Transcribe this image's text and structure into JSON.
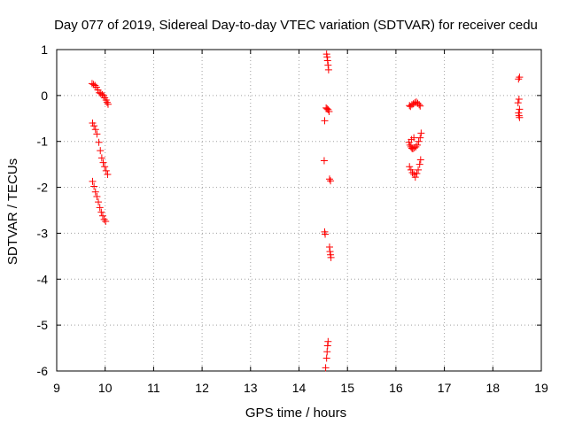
{
  "chart_data": {
    "type": "scatter",
    "title": "Day 077 of 2019, Sidereal Day-to-day VTEC variation (SDTVAR) for receiver cedu",
    "xlabel": "GPS time / hours",
    "ylabel": "SDTVAR / TECUs",
    "xlim": [
      9,
      19
    ],
    "ylim": [
      -6,
      1
    ],
    "xticks": [
      "9",
      "10",
      "11",
      "12",
      "13",
      "14",
      "15",
      "16",
      "17",
      "18",
      "19"
    ],
    "yticks": [
      "1",
      "0",
      "-1",
      "-2",
      "-3",
      "-4",
      "-5",
      "-6"
    ],
    "grid": true,
    "marker": "+",
    "color": "#ff0000",
    "series": [
      {
        "name": "SDTVAR",
        "points": [
          [
            9.73,
            0.26
          ],
          [
            9.76,
            0.24
          ],
          [
            9.79,
            0.22
          ],
          [
            9.82,
            0.18
          ],
          [
            9.85,
            0.12
          ],
          [
            9.88,
            0.06
          ],
          [
            9.91,
            0.04
          ],
          [
            9.94,
            0.02
          ],
          [
            9.97,
            0.0
          ],
          [
            9.99,
            -0.05
          ],
          [
            10.02,
            -0.1
          ],
          [
            10.04,
            -0.15
          ],
          [
            10.06,
            -0.19
          ],
          [
            9.74,
            -0.6
          ],
          [
            9.77,
            -0.66
          ],
          [
            9.8,
            -0.74
          ],
          [
            9.83,
            -0.84
          ],
          [
            9.87,
            -1.02
          ],
          [
            9.9,
            -1.2
          ],
          [
            9.93,
            -1.36
          ],
          [
            9.96,
            -1.46
          ],
          [
            9.99,
            -1.55
          ],
          [
            10.02,
            -1.64
          ],
          [
            10.05,
            -1.72
          ],
          [
            9.74,
            -1.87
          ],
          [
            9.77,
            -1.98
          ],
          [
            9.8,
            -2.1
          ],
          [
            9.83,
            -2.2
          ],
          [
            9.86,
            -2.32
          ],
          [
            9.89,
            -2.44
          ],
          [
            9.92,
            -2.54
          ],
          [
            9.95,
            -2.62
          ],
          [
            9.98,
            -2.7
          ],
          [
            10.01,
            -2.74
          ],
          [
            14.57,
            0.9
          ],
          [
            14.58,
            0.84
          ],
          [
            14.59,
            0.76
          ],
          [
            14.6,
            0.66
          ],
          [
            14.61,
            0.56
          ],
          [
            14.56,
            -0.27
          ],
          [
            14.58,
            -0.29
          ],
          [
            14.6,
            -0.31
          ],
          [
            14.62,
            -0.35
          ],
          [
            14.53,
            -0.55
          ],
          [
            14.52,
            -1.42
          ],
          [
            14.63,
            -1.82
          ],
          [
            14.65,
            -1.86
          ],
          [
            14.53,
            -2.97
          ],
          [
            14.54,
            -3.02
          ],
          [
            14.63,
            -3.3
          ],
          [
            14.64,
            -3.4
          ],
          [
            14.65,
            -3.47
          ],
          [
            14.66,
            -3.53
          ],
          [
            14.6,
            -5.36
          ],
          [
            14.59,
            -5.45
          ],
          [
            14.58,
            -5.58
          ],
          [
            14.57,
            -5.72
          ],
          [
            14.55,
            -5.93
          ],
          [
            16.28,
            -0.22
          ],
          [
            16.3,
            -0.24
          ],
          [
            16.33,
            -0.2
          ],
          [
            16.36,
            -0.18
          ],
          [
            16.39,
            -0.16
          ],
          [
            16.42,
            -0.14
          ],
          [
            16.45,
            -0.17
          ],
          [
            16.48,
            -0.2
          ],
          [
            16.5,
            -0.23
          ],
          [
            16.27,
            -1.02
          ],
          [
            16.29,
            -1.08
          ],
          [
            16.31,
            -1.12
          ],
          [
            16.33,
            -1.15
          ],
          [
            16.35,
            -1.16
          ],
          [
            16.38,
            -1.14
          ],
          [
            16.41,
            -1.12
          ],
          [
            16.44,
            -1.08
          ],
          [
            16.47,
            -1.0
          ],
          [
            16.5,
            -0.92
          ],
          [
            16.52,
            -0.82
          ],
          [
            16.32,
            -0.96
          ],
          [
            16.37,
            -0.92
          ],
          [
            16.28,
            -1.55
          ],
          [
            16.31,
            -1.62
          ],
          [
            16.34,
            -1.68
          ],
          [
            16.37,
            -1.72
          ],
          [
            16.4,
            -1.78
          ],
          [
            16.43,
            -1.7
          ],
          [
            16.46,
            -1.62
          ],
          [
            16.49,
            -1.5
          ],
          [
            16.51,
            -1.4
          ],
          [
            18.55,
            0.4
          ],
          [
            18.53,
            0.36
          ],
          [
            18.54,
            -0.08
          ],
          [
            18.52,
            -0.16
          ],
          [
            18.55,
            -0.3
          ],
          [
            18.53,
            -0.38
          ],
          [
            18.54,
            -0.44
          ],
          [
            18.55,
            -0.48
          ]
        ]
      }
    ]
  }
}
